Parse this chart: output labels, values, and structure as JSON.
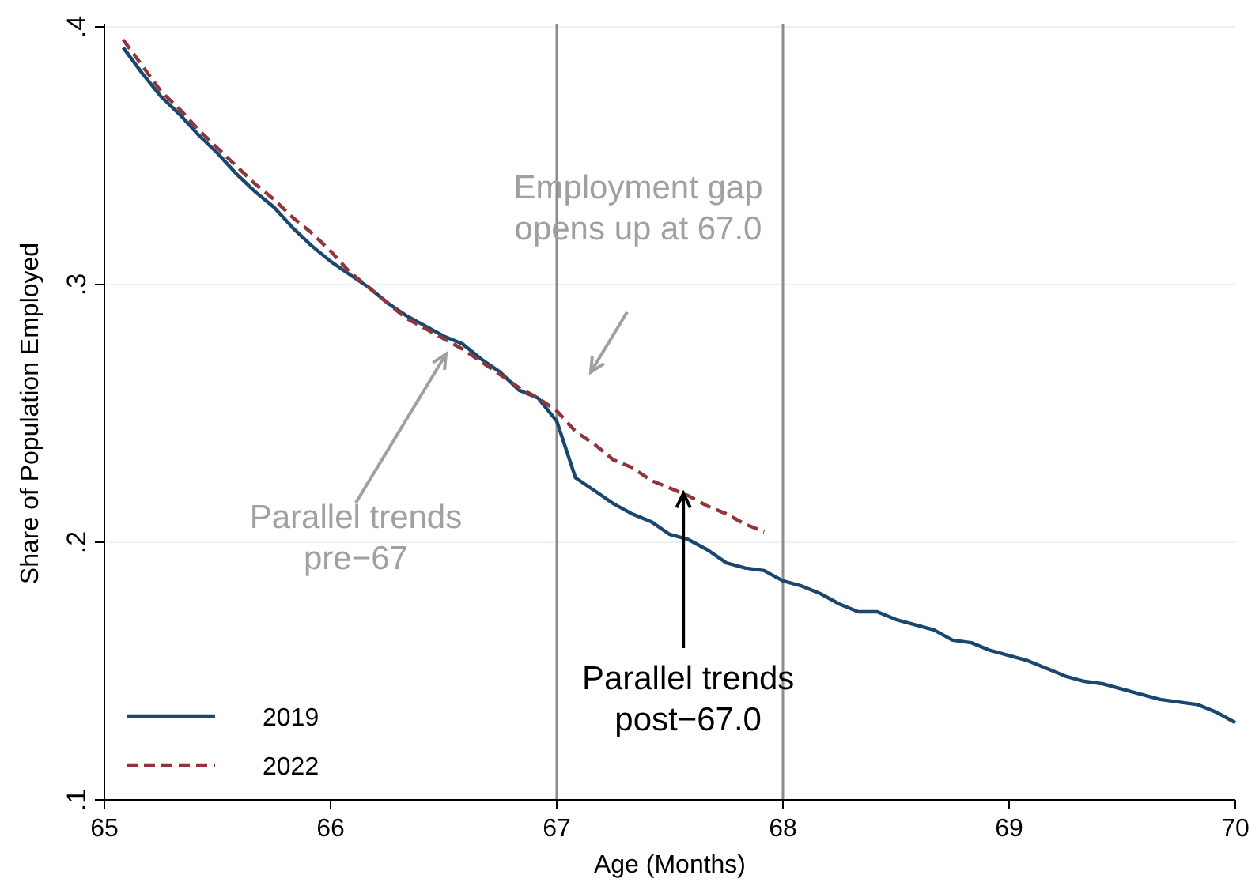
{
  "chart_data": {
    "type": "line",
    "xlabel": "Age (Months)",
    "ylabel": "Share of Population Employed",
    "xlim": [
      65,
      70
    ],
    "xticks": [
      65,
      66,
      67,
      68,
      69,
      70
    ],
    "ylim": [
      0.1,
      0.4
    ],
    "yticks": [
      {
        "value": 0.1,
        "label": ".1"
      },
      {
        "value": 0.2,
        "label": ".2"
      },
      {
        "value": 0.3,
        "label": ".3"
      },
      {
        "value": 0.4,
        "label": ".4"
      }
    ],
    "grid": "y",
    "legend": "bottom left",
    "marker": "none",
    "series": [
      {
        "name": "2019",
        "color": "#1a476f",
        "line_style": "solid",
        "x": [
          65.083,
          65.167,
          65.25,
          65.333,
          65.417,
          65.5,
          65.583,
          65.667,
          65.75,
          65.833,
          65.917,
          66,
          66.083,
          66.167,
          66.25,
          66.333,
          66.417,
          66.5,
          66.583,
          66.667,
          66.75,
          66.833,
          66.917,
          67,
          67.083,
          67.167,
          67.25,
          67.333,
          67.417,
          67.5,
          67.583,
          67.667,
          67.75,
          67.833,
          67.917,
          68,
          68.083,
          68.167,
          68.25,
          68.333,
          68.417,
          68.5,
          68.583,
          68.667,
          68.75,
          68.833,
          68.917,
          69,
          69.083,
          69.167,
          69.25,
          69.333,
          69.417,
          69.5,
          69.583,
          69.667,
          69.75,
          69.833,
          69.917,
          70
        ],
        "values": [
          0.392,
          0.382,
          0.373,
          0.366,
          0.358,
          0.351,
          0.343,
          0.336,
          0.33,
          0.322,
          0.315,
          0.309,
          0.304,
          0.299,
          0.293,
          0.288,
          0.284,
          0.28,
          0.277,
          0.271,
          0.266,
          0.259,
          0.256,
          0.247,
          0.225,
          0.22,
          0.215,
          0.211,
          0.208,
          0.203,
          0.201,
          0.197,
          0.192,
          0.19,
          0.189,
          0.185,
          0.183,
          0.18,
          0.176,
          0.173,
          0.173,
          0.17,
          0.168,
          0.166,
          0.162,
          0.161,
          0.158,
          0.156,
          0.154,
          0.151,
          0.148,
          0.146,
          0.145,
          0.143,
          0.141,
          0.139,
          0.138,
          0.137,
          0.134,
          0.13
        ]
      },
      {
        "name": "2022",
        "color": "#90353b",
        "line_style": "dashed",
        "x": [
          65.083,
          65.167,
          65.25,
          65.333,
          65.417,
          65.5,
          65.583,
          65.667,
          65.75,
          65.833,
          65.917,
          66,
          66.083,
          66.167,
          66.25,
          66.333,
          66.417,
          66.5,
          66.583,
          66.667,
          66.75,
          66.833,
          66.917,
          67,
          67.083,
          67.167,
          67.25,
          67.333,
          67.417,
          67.5,
          67.583,
          67.667,
          67.75,
          67.833,
          67.917
        ],
        "values": [
          0.395,
          0.385,
          0.375,
          0.368,
          0.36,
          0.353,
          0.346,
          0.339,
          0.333,
          0.326,
          0.32,
          0.313,
          0.305,
          0.299,
          0.293,
          0.287,
          0.283,
          0.279,
          0.275,
          0.27,
          0.265,
          0.26,
          0.256,
          0.251,
          0.243,
          0.238,
          0.232,
          0.229,
          0.224,
          0.221,
          0.218,
          0.214,
          0.211,
          0.207,
          0.204
        ]
      }
    ],
    "ref_lines": [
      {
        "axis": "x",
        "value": 67,
        "color": "#8c8c8c"
      },
      {
        "axis": "x",
        "value": 68,
        "color": "#8c8c8c"
      }
    ],
    "annotations": [
      "Employment gap\nopens up at 67.0",
      "Parallel trends\npre−67",
      {
        "text": "Parallel trends\npost−67.0",
        "x": 67.56,
        "y": 0.219
      }
    ]
  }
}
